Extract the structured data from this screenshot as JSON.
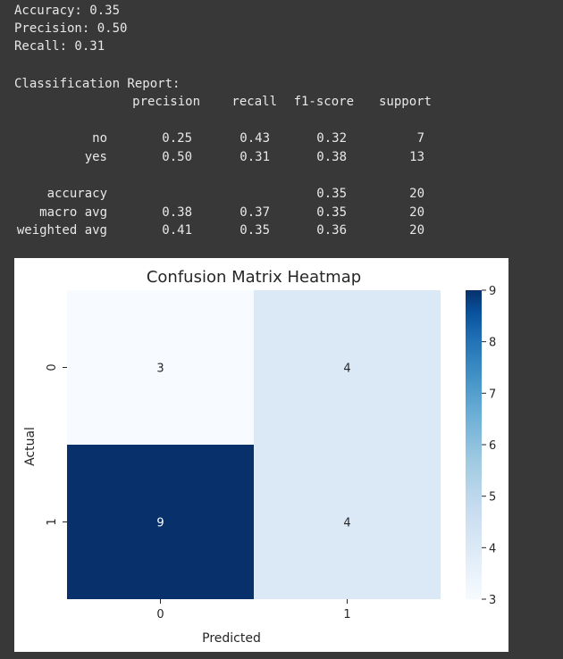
{
  "metrics": {
    "accuracy": "Accuracy: 0.35",
    "precision": "Precision: 0.50",
    "recall": "Recall: 0.31"
  },
  "report": {
    "title": "Classification Report:",
    "headers": [
      "precision",
      "recall",
      "f1-score",
      "support"
    ],
    "rows": [
      {
        "label": "no",
        "values": [
          "0.25",
          "0.43",
          "0.32",
          "7"
        ]
      },
      {
        "label": "yes",
        "values": [
          "0.50",
          "0.31",
          "0.38",
          "13"
        ]
      },
      {
        "label": "accuracy",
        "values": [
          "",
          "",
          "0.35",
          "20"
        ]
      },
      {
        "label": "macro avg",
        "values": [
          "0.38",
          "0.37",
          "0.35",
          "20"
        ]
      },
      {
        "label": "weighted avg",
        "values": [
          "0.41",
          "0.35",
          "0.36",
          "20"
        ]
      }
    ]
  },
  "chart_data": {
    "type": "heatmap",
    "title": "Confusion Matrix Heatmap",
    "xlabel": "Predicted",
    "ylabel": "Actual",
    "x_categories": [
      "0",
      "1"
    ],
    "y_categories": [
      "0",
      "1"
    ],
    "values": [
      [
        3,
        4
      ],
      [
        9,
        4
      ]
    ],
    "colormap": "Blues",
    "colorbar": {
      "min": 3,
      "max": 9,
      "ticks": [
        3,
        4,
        5,
        6,
        7,
        8,
        9
      ]
    },
    "colors": {
      "low": "#f7fbff",
      "high": "#08306b"
    }
  }
}
